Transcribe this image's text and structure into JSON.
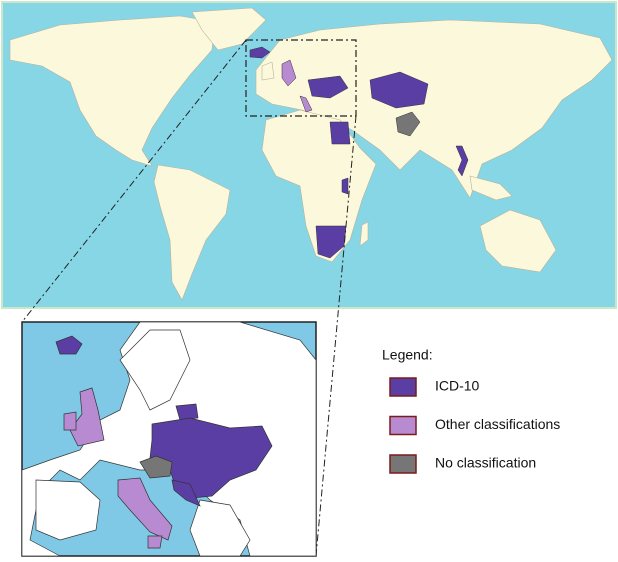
{
  "legend": {
    "title": "Legend:",
    "items": [
      {
        "label": "ICD-10",
        "color": "#5b3ea4"
      },
      {
        "label": "Other classifications",
        "color": "#b88ad2"
      },
      {
        "label": "No classification",
        "color": "#767676"
      }
    ],
    "border_color": "#7a1c1c"
  }
}
